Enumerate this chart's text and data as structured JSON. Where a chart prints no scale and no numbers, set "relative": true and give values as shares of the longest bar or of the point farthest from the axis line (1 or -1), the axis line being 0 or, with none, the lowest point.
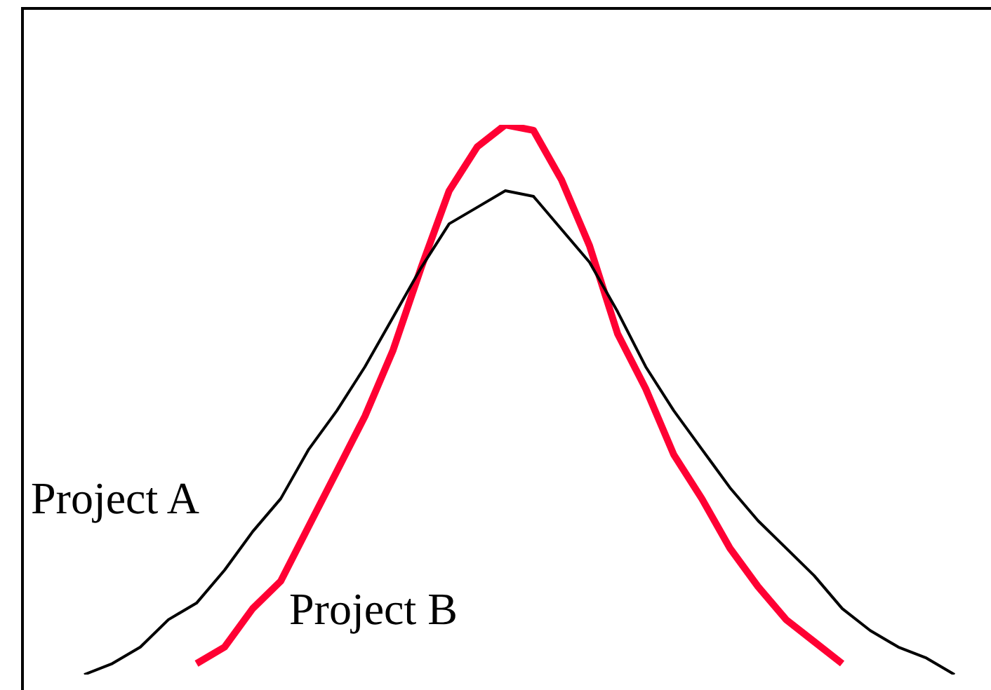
{
  "chart_data": {
    "type": "line",
    "relative": true,
    "legend": false,
    "marker": "none",
    "line_style": "solid",
    "categories": [
      null,
      null,
      null,
      null,
      null,
      null,
      null,
      null,
      null,
      null,
      null,
      null,
      null,
      null,
      null,
      null,
      null,
      null,
      null,
      null,
      null,
      null,
      null,
      null,
      null,
      null,
      null,
      null,
      null,
      null,
      null,
      null
    ],
    "series": [
      {
        "name": "Project A",
        "color": "#000000",
        "values": [
          0.0,
          0.02,
          0.05,
          0.1,
          0.13,
          0.19,
          0.26,
          0.32,
          0.41,
          0.48,
          0.56,
          0.65,
          0.74,
          0.82,
          0.85,
          0.88,
          0.87,
          0.81,
          0.75,
          0.66,
          0.56,
          0.48,
          0.41,
          0.34,
          0.28,
          0.23,
          0.18,
          0.12,
          0.08,
          0.05,
          0.03,
          0.0
        ]
      },
      {
        "name": "Project B",
        "color": "#ff0033",
        "values": [
          null,
          null,
          null,
          null,
          0.02,
          0.05,
          0.12,
          0.17,
          0.27,
          0.37,
          0.47,
          0.59,
          0.74,
          0.88,
          0.96,
          1.0,
          0.99,
          0.9,
          0.78,
          0.62,
          0.52,
          0.4,
          0.32,
          0.23,
          0.16,
          0.1,
          0.06,
          0.02,
          null,
          null,
          null,
          null
        ]
      }
    ]
  }
}
